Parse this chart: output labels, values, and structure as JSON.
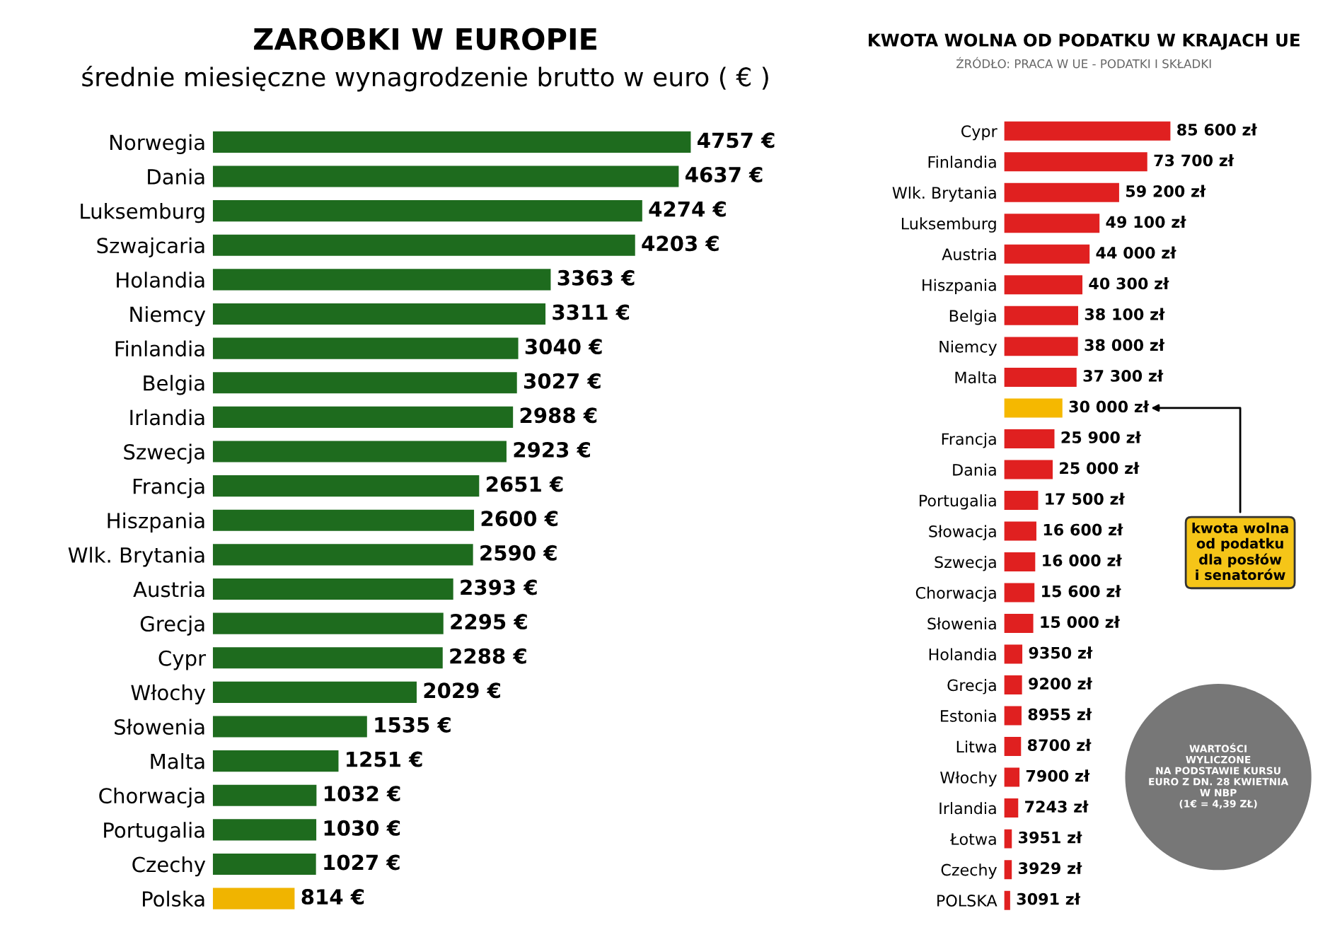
{
  "chart_data": [
    {
      "type": "bar",
      "orientation": "horizontal",
      "title": "ZAROBKI W EUROPIE",
      "subtitle": "średnie miesięczne wynagrodzenie brutto w euro ( € )",
      "tick_labels": "y",
      "grid": false,
      "legend": false,
      "categories": [
        "Norwegia",
        "Dania",
        "Luksemburg",
        "Szwajcaria",
        "Holandia",
        "Niemcy",
        "Finlandia",
        "Belgia",
        "Irlandia",
        "Szwecja",
        "Francja",
        "Hiszpania",
        "Wlk. Brytania",
        "Austria",
        "Grecja",
        "Cypr",
        "Włochy",
        "Słowenia",
        "Malta",
        "Chorwacja",
        "Portugalia",
        "Czechy",
        "Polska"
      ],
      "values": [
        4757,
        4637,
        4274,
        4203,
        3363,
        3311,
        3040,
        3027,
        2988,
        2923,
        2651,
        2600,
        2590,
        2393,
        2295,
        2288,
        2029,
        1535,
        1251,
        1032,
        1030,
        1027,
        814
      ],
      "colors": [
        "#1e6b1e",
        "#1e6b1e",
        "#1e6b1e",
        "#1e6b1e",
        "#1e6b1e",
        "#1e6b1e",
        "#1e6b1e",
        "#1e6b1e",
        "#1e6b1e",
        "#1e6b1e",
        "#1e6b1e",
        "#1e6b1e",
        "#1e6b1e",
        "#1e6b1e",
        "#1e6b1e",
        "#1e6b1e",
        "#1e6b1e",
        "#1e6b1e",
        "#1e6b1e",
        "#1e6b1e",
        "#1e6b1e",
        "#1e6b1e",
        "#f0b400"
      ],
      "value_labels": [
        "4757 €",
        "4637 €",
        "4274 €",
        "4203 €",
        "3363 €",
        "3311 €",
        "3040 €",
        "3027 €",
        "2988 €",
        "2923 €",
        "2651 €",
        "2600 €",
        "2590 €",
        "2393 €",
        "2295 €",
        "2288 €",
        "2029 €",
        "1535 €",
        "1251 €",
        "1032 €",
        "1030 €",
        "1027 €",
        "814 €"
      ]
    },
    {
      "type": "bar",
      "orientation": "horizontal",
      "title": "KWOTA WOLNA OD PODATKU W KRAJACH UE",
      "subtitle": "ŹRÓDŁO: PRACA W UE - PODATKI I SKŁADKI",
      "tick_labels": "y",
      "grid": false,
      "legend": false,
      "categories": [
        "Cypr",
        "Finlandia",
        "Wlk. Brytania",
        "Luksemburg",
        "Austria",
        "Hiszpania",
        "Belgia",
        "Niemcy",
        "Malta",
        null,
        "Francja",
        "Dania",
        "Portugalia",
        "Słowacja",
        "Szwecja",
        "Chorwacja",
        "Słowenia",
        "Holandia",
        "Grecja",
        "Estonia",
        "Litwa",
        "Włochy",
        "Irlandia",
        "Łotwa",
        "Czechy",
        "POLSKA"
      ],
      "values": [
        85600,
        73700,
        59200,
        49100,
        44000,
        40300,
        38100,
        38000,
        37300,
        30000,
        25900,
        25000,
        17500,
        16600,
        16000,
        15600,
        15000,
        9350,
        9200,
        8955,
        8700,
        7900,
        7243,
        3951,
        3929,
        3091
      ],
      "colors": [
        "#e02020",
        "#e02020",
        "#e02020",
        "#e02020",
        "#e02020",
        "#e02020",
        "#e02020",
        "#e02020",
        "#e02020",
        "#f5b800",
        "#e02020",
        "#e02020",
        "#e02020",
        "#e02020",
        "#e02020",
        "#e02020",
        "#e02020",
        "#e02020",
        "#e02020",
        "#e02020",
        "#e02020",
        "#e02020",
        "#e02020",
        "#e02020",
        "#e02020",
        "#e02020"
      ],
      "value_labels": [
        "85 600 zł",
        "73 700 zł",
        "59 200 zł",
        "49 100 zł",
        "44 000 zł",
        "40 300 zł",
        "38 100 zł",
        "38 000 zł",
        "37 300 zł",
        "30 000 zł",
        "25 900 zł",
        "25 000 zł",
        "17 500 zł",
        "16 600 zł",
        "16 000 zł",
        "15 600 zł",
        "15 000 zł",
        "9350 zł",
        "9200 zł",
        "8955 zł",
        "8700 zł",
        "7900 zł",
        "7243 zł",
        "3951 zł",
        "3929 zł",
        "3091 zł"
      ],
      "annotations": [
        "kwota wolna\nod podatku\ndla posłów\ni senatorów",
        "WARTOŚCI\nWYLICZONE\nNA PODSTAWIE KURSU\nEURO Z DN. 28 KWIETNIA\nW NBP\n(1€ = 4,39 ZŁ)"
      ]
    }
  ]
}
